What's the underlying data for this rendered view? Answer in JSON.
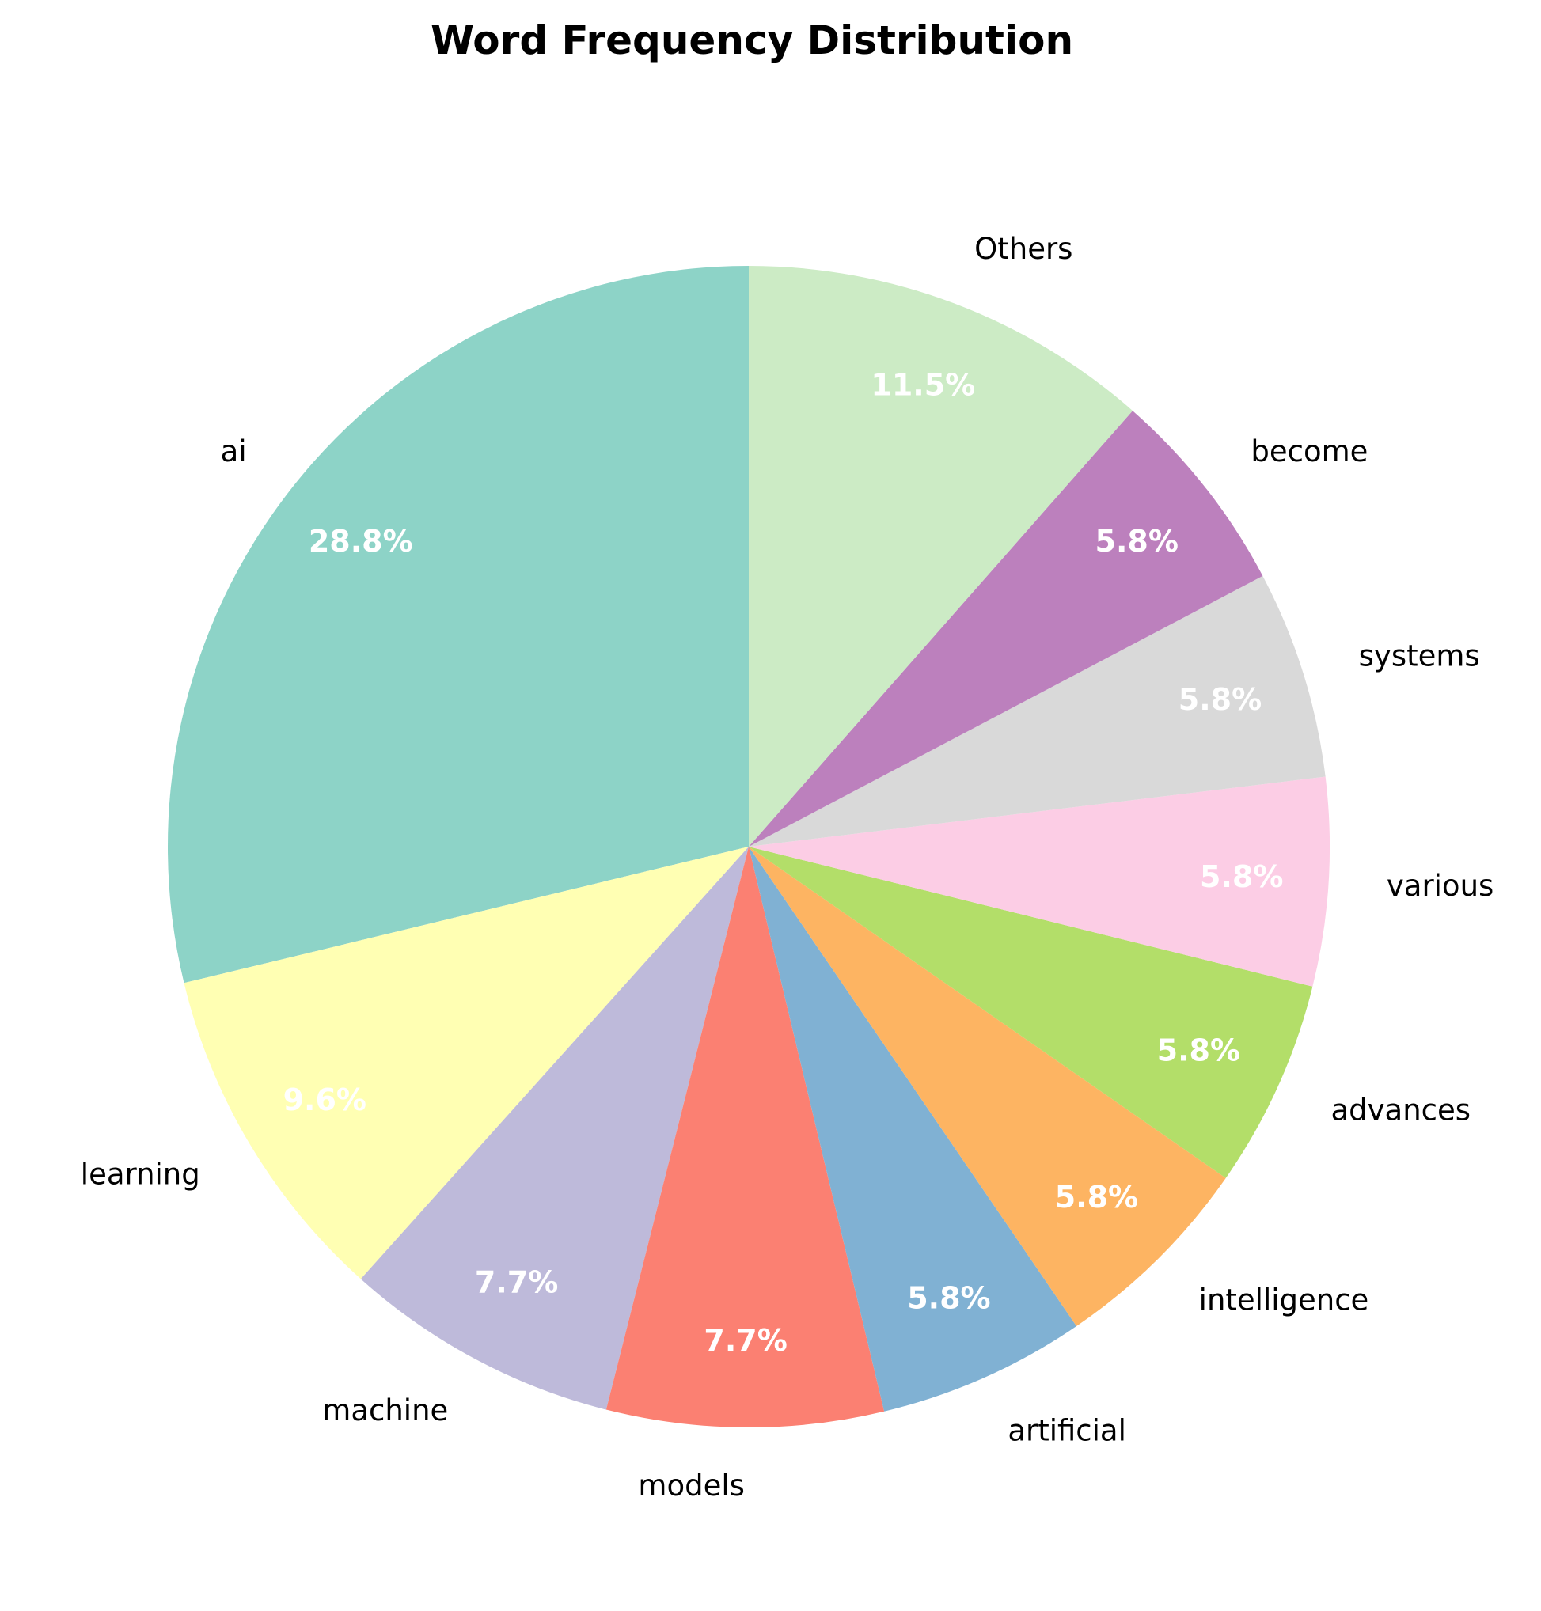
{
  "chart_data": {
    "type": "pie",
    "title": "Word Frequency Distribution",
    "start_angle_deg": 90,
    "direction": "counterclockwise",
    "slices": [
      {
        "label": "ai",
        "value": 28.8,
        "pct_label": "28.8%",
        "color": "#8dd3c7"
      },
      {
        "label": "learning",
        "value": 9.6,
        "pct_label": "9.6%",
        "color": "#ffffb3"
      },
      {
        "label": "machine",
        "value": 7.7,
        "pct_label": "7.7%",
        "color": "#bebada"
      },
      {
        "label": "models",
        "value": 7.7,
        "pct_label": "7.7%",
        "color": "#fb8072"
      },
      {
        "label": "artificial",
        "value": 5.8,
        "pct_label": "5.8%",
        "color": "#80b1d3"
      },
      {
        "label": "intelligence",
        "value": 5.8,
        "pct_label": "5.8%",
        "color": "#fdb462"
      },
      {
        "label": "advances",
        "value": 5.8,
        "pct_label": "5.8%",
        "color": "#b3de69"
      },
      {
        "label": "various",
        "value": 5.8,
        "pct_label": "5.8%",
        "color": "#fccde5"
      },
      {
        "label": "systems",
        "value": 5.8,
        "pct_label": "5.8%",
        "color": "#d9d9d9"
      },
      {
        "label": "become",
        "value": 5.8,
        "pct_label": "5.8%",
        "color": "#bc80bd"
      },
      {
        "label": "Others",
        "value": 11.5,
        "pct_label": "11.5%",
        "color": "#ccebc5"
      }
    ]
  }
}
